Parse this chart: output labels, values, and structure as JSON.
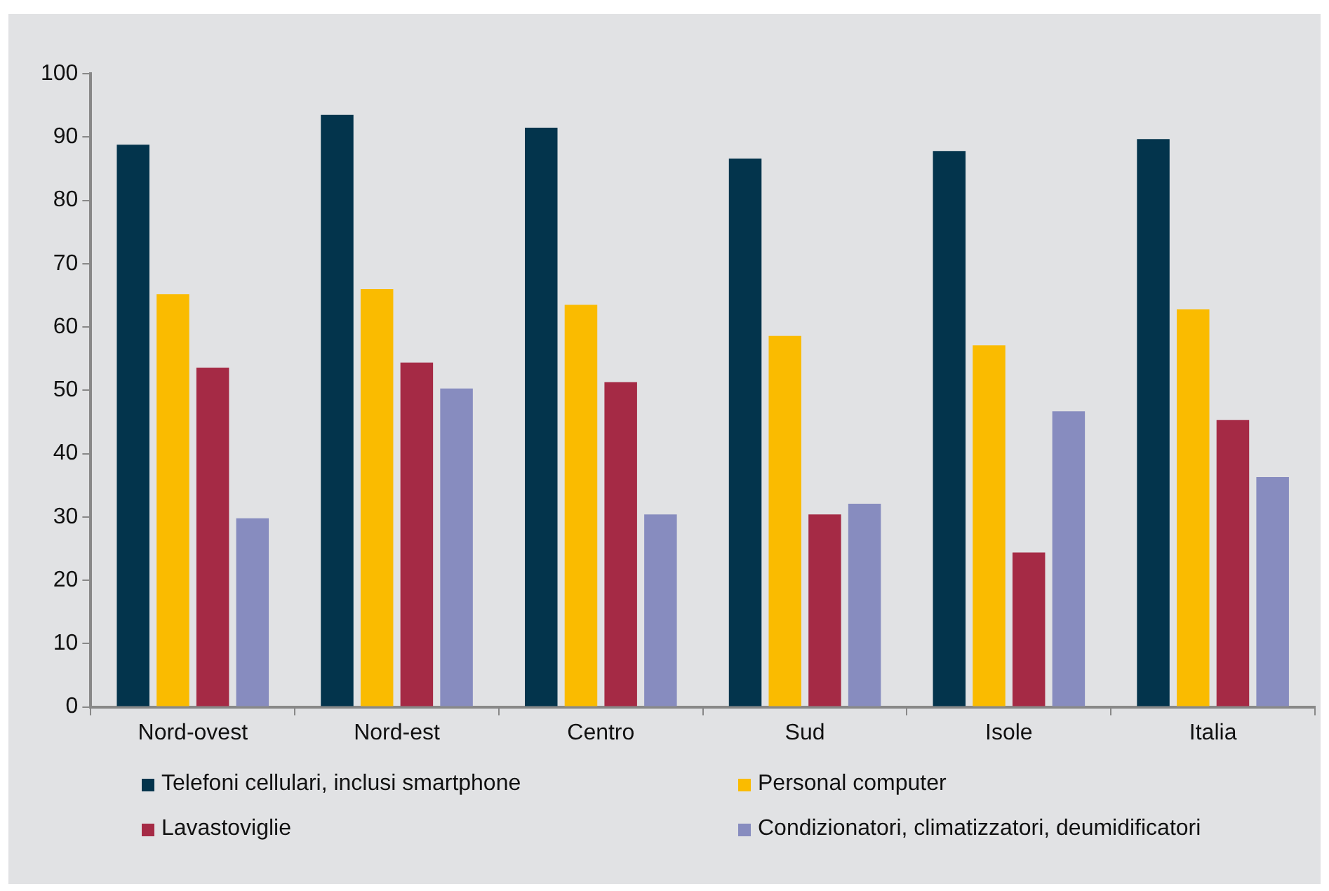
{
  "chart_data": {
    "type": "bar",
    "categories": [
      "Nord-ovest",
      "Nord-est",
      "Centro",
      "Sud",
      "Isole",
      "Italia"
    ],
    "series": [
      {
        "name": "Telefoni cellulari, inclusi smartphone",
        "color": "#03344c",
        "values": [
          88.8,
          93.5,
          91.5,
          86.6,
          87.8,
          89.7
        ]
      },
      {
        "name": "Personal computer",
        "color": "#fabb00",
        "values": [
          65.2,
          66,
          63.5,
          58.6,
          57.1,
          62.8
        ]
      },
      {
        "name": "Lavastoviglie",
        "color": "#a52a45",
        "values": [
          53.6,
          54.4,
          51.3,
          30.4,
          24.4,
          45.3
        ]
      },
      {
        "name": "Condizionatori, climatizzatori, deumidificatori",
        "color": "#878cbf",
        "values": [
          29.8,
          50.3,
          30.4,
          32.1,
          46.7,
          36.3
        ]
      }
    ],
    "ylim": [
      0,
      100
    ],
    "yticks": [
      0,
      10,
      20,
      30,
      40,
      50,
      60,
      70,
      80,
      90,
      100
    ],
    "grid": false,
    "legend": "bottom"
  }
}
